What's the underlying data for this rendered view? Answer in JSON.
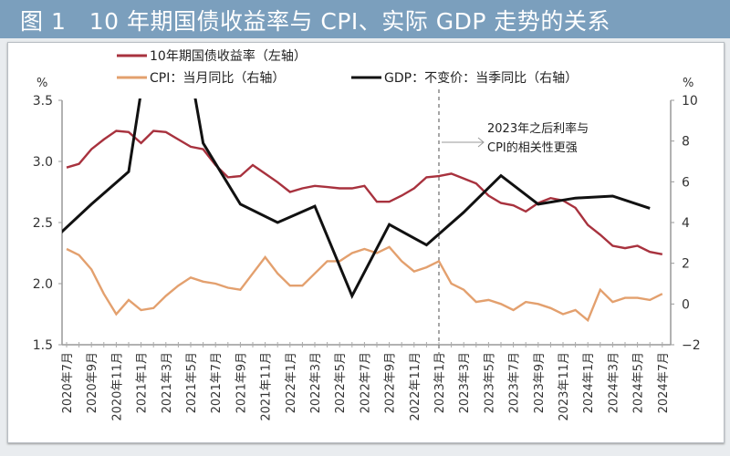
{
  "header": {
    "title": "图 1   10 年期国债收益率与 CPI、实际 GDP 走势的关系"
  },
  "colors": {
    "header_bg": "#7b9fbd",
    "yield": "#a8323e",
    "cpi": "#e3a06e",
    "gdp": "#111111"
  },
  "chart_data": {
    "type": "line",
    "title": "图 1   10 年期国债收益率与 CPI、实际 GDP 走势的关系",
    "left_axis": {
      "unit": "%",
      "ylim": [
        1.5,
        3.5
      ],
      "ticks": [
        "3.5",
        "3.0",
        "2.5",
        "2.0",
        "1.5"
      ]
    },
    "right_axis": {
      "unit": "%",
      "ylim": [
        -2,
        10
      ],
      "ticks": [
        "10",
        "8",
        "6",
        "4",
        "2",
        "0",
        "-2"
      ]
    },
    "x_tick_labels": [
      "2020年7月",
      "2020年9月",
      "2020年11月",
      "2021年1月",
      "2021年3月",
      "2021年5月",
      "2021年7月",
      "2021年9月",
      "2021年11月",
      "2022年1月",
      "2022年3月",
      "2022年5月",
      "2022年7月",
      "2022年9月",
      "2022年11月",
      "2023年1月",
      "2023年3月",
      "2023年5月",
      "2023年7月",
      "2023年9月",
      "2023年11月",
      "2024年1月",
      "2024年3月",
      "2024年5月",
      "2024年7月"
    ],
    "x_start": "2020-07",
    "x_end": "2024-07",
    "legend": {
      "placement": "top"
    },
    "series": [
      {
        "name": "10年期国债收益率（左轴）",
        "axis": "left",
        "start": "2020-07",
        "values": [
          2.95,
          2.98,
          3.1,
          3.18,
          3.25,
          3.24,
          3.15,
          3.25,
          3.24,
          3.18,
          3.12,
          3.1,
          2.97,
          2.87,
          2.88,
          2.97,
          2.9,
          2.83,
          2.75,
          2.78,
          2.8,
          2.79,
          2.78,
          2.78,
          2.8,
          2.67,
          2.67,
          2.72,
          2.78,
          2.87,
          2.88,
          2.9,
          2.86,
          2.82,
          2.72,
          2.66,
          2.64,
          2.59,
          2.66,
          2.7,
          2.68,
          2.62,
          2.48,
          2.4,
          2.31,
          2.29,
          2.31,
          2.26,
          2.24
        ]
      },
      {
        "name": "CPI：当月同比（右轴）",
        "axis": "right",
        "start": "2020-07",
        "values": [
          2.7,
          2.4,
          1.7,
          0.5,
          -0.5,
          0.2,
          -0.3,
          -0.2,
          0.4,
          0.9,
          1.3,
          1.1,
          1.0,
          0.8,
          0.7,
          1.5,
          2.3,
          1.5,
          0.9,
          0.9,
          1.5,
          2.1,
          2.1,
          2.5,
          2.7,
          2.5,
          2.8,
          2.1,
          1.6,
          1.8,
          2.1,
          1.0,
          0.7,
          0.1,
          0.2,
          0.0,
          -0.3,
          0.1,
          0.0,
          -0.2,
          -0.5,
          -0.3,
          -0.8,
          0.7,
          0.1,
          0.3,
          0.3,
          0.2,
          0.5
        ]
      },
      {
        "name": "GDP：不变价：当季同比（右轴）",
        "axis": "right",
        "x": [
          "2020-06",
          "2020-09",
          "2020-12",
          "2021-03",
          "2021-06",
          "2021-09",
          "2021-12",
          "2022-03",
          "2022-06",
          "2022-09",
          "2022-12",
          "2023-03",
          "2023-06",
          "2023-09",
          "2023-12",
          "2024-03",
          "2024-06"
        ],
        "values": [
          3.2,
          4.9,
          6.5,
          18.3,
          7.9,
          4.9,
          4.0,
          4.8,
          0.4,
          3.9,
          2.9,
          4.5,
          6.3,
          4.9,
          5.2,
          5.3,
          4.7
        ]
      }
    ],
    "annotation": {
      "line1": "2023年之后利率与",
      "line2": "CPI的相关性更强",
      "vline_at": "2023-01"
    },
    "grid": false
  }
}
